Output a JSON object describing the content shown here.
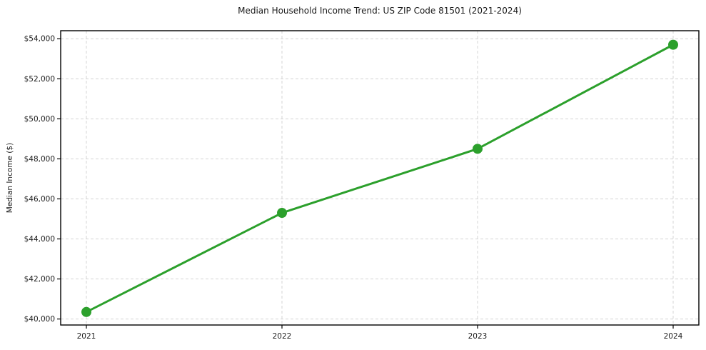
{
  "figure": {
    "title": "Median Household Income Trend: US ZIP Code 81501 (2021-2024)",
    "ylabel": "Median Income ($)"
  },
  "chart_data": {
    "type": "line",
    "title": "Median Household Income Trend: US ZIP Code 81501 (2021-2024)",
    "xlabel": "",
    "ylabel": "Median Income ($)",
    "x": [
      2021,
      2022,
      2023,
      2024
    ],
    "x_tick_labels": [
      "2021",
      "2022",
      "2023",
      "2024"
    ],
    "values": [
      40350,
      45300,
      48500,
      53700
    ],
    "y_ticks": [
      40000,
      42000,
      44000,
      46000,
      48000,
      50000,
      52000,
      54000
    ],
    "y_tick_labels": [
      "$40,000",
      "$42,000",
      "$44,000",
      "$46,000",
      "$48,000",
      "$50,000",
      "$52,000",
      "$54,000"
    ],
    "ylim": [
      39700,
      54400
    ],
    "grid": true,
    "grid_style": "dashed",
    "legend_position": "none",
    "line_color": "#2ca02c",
    "grid_color": "#d4d4d4",
    "spine_color": "#000000",
    "marker": "circle"
  }
}
